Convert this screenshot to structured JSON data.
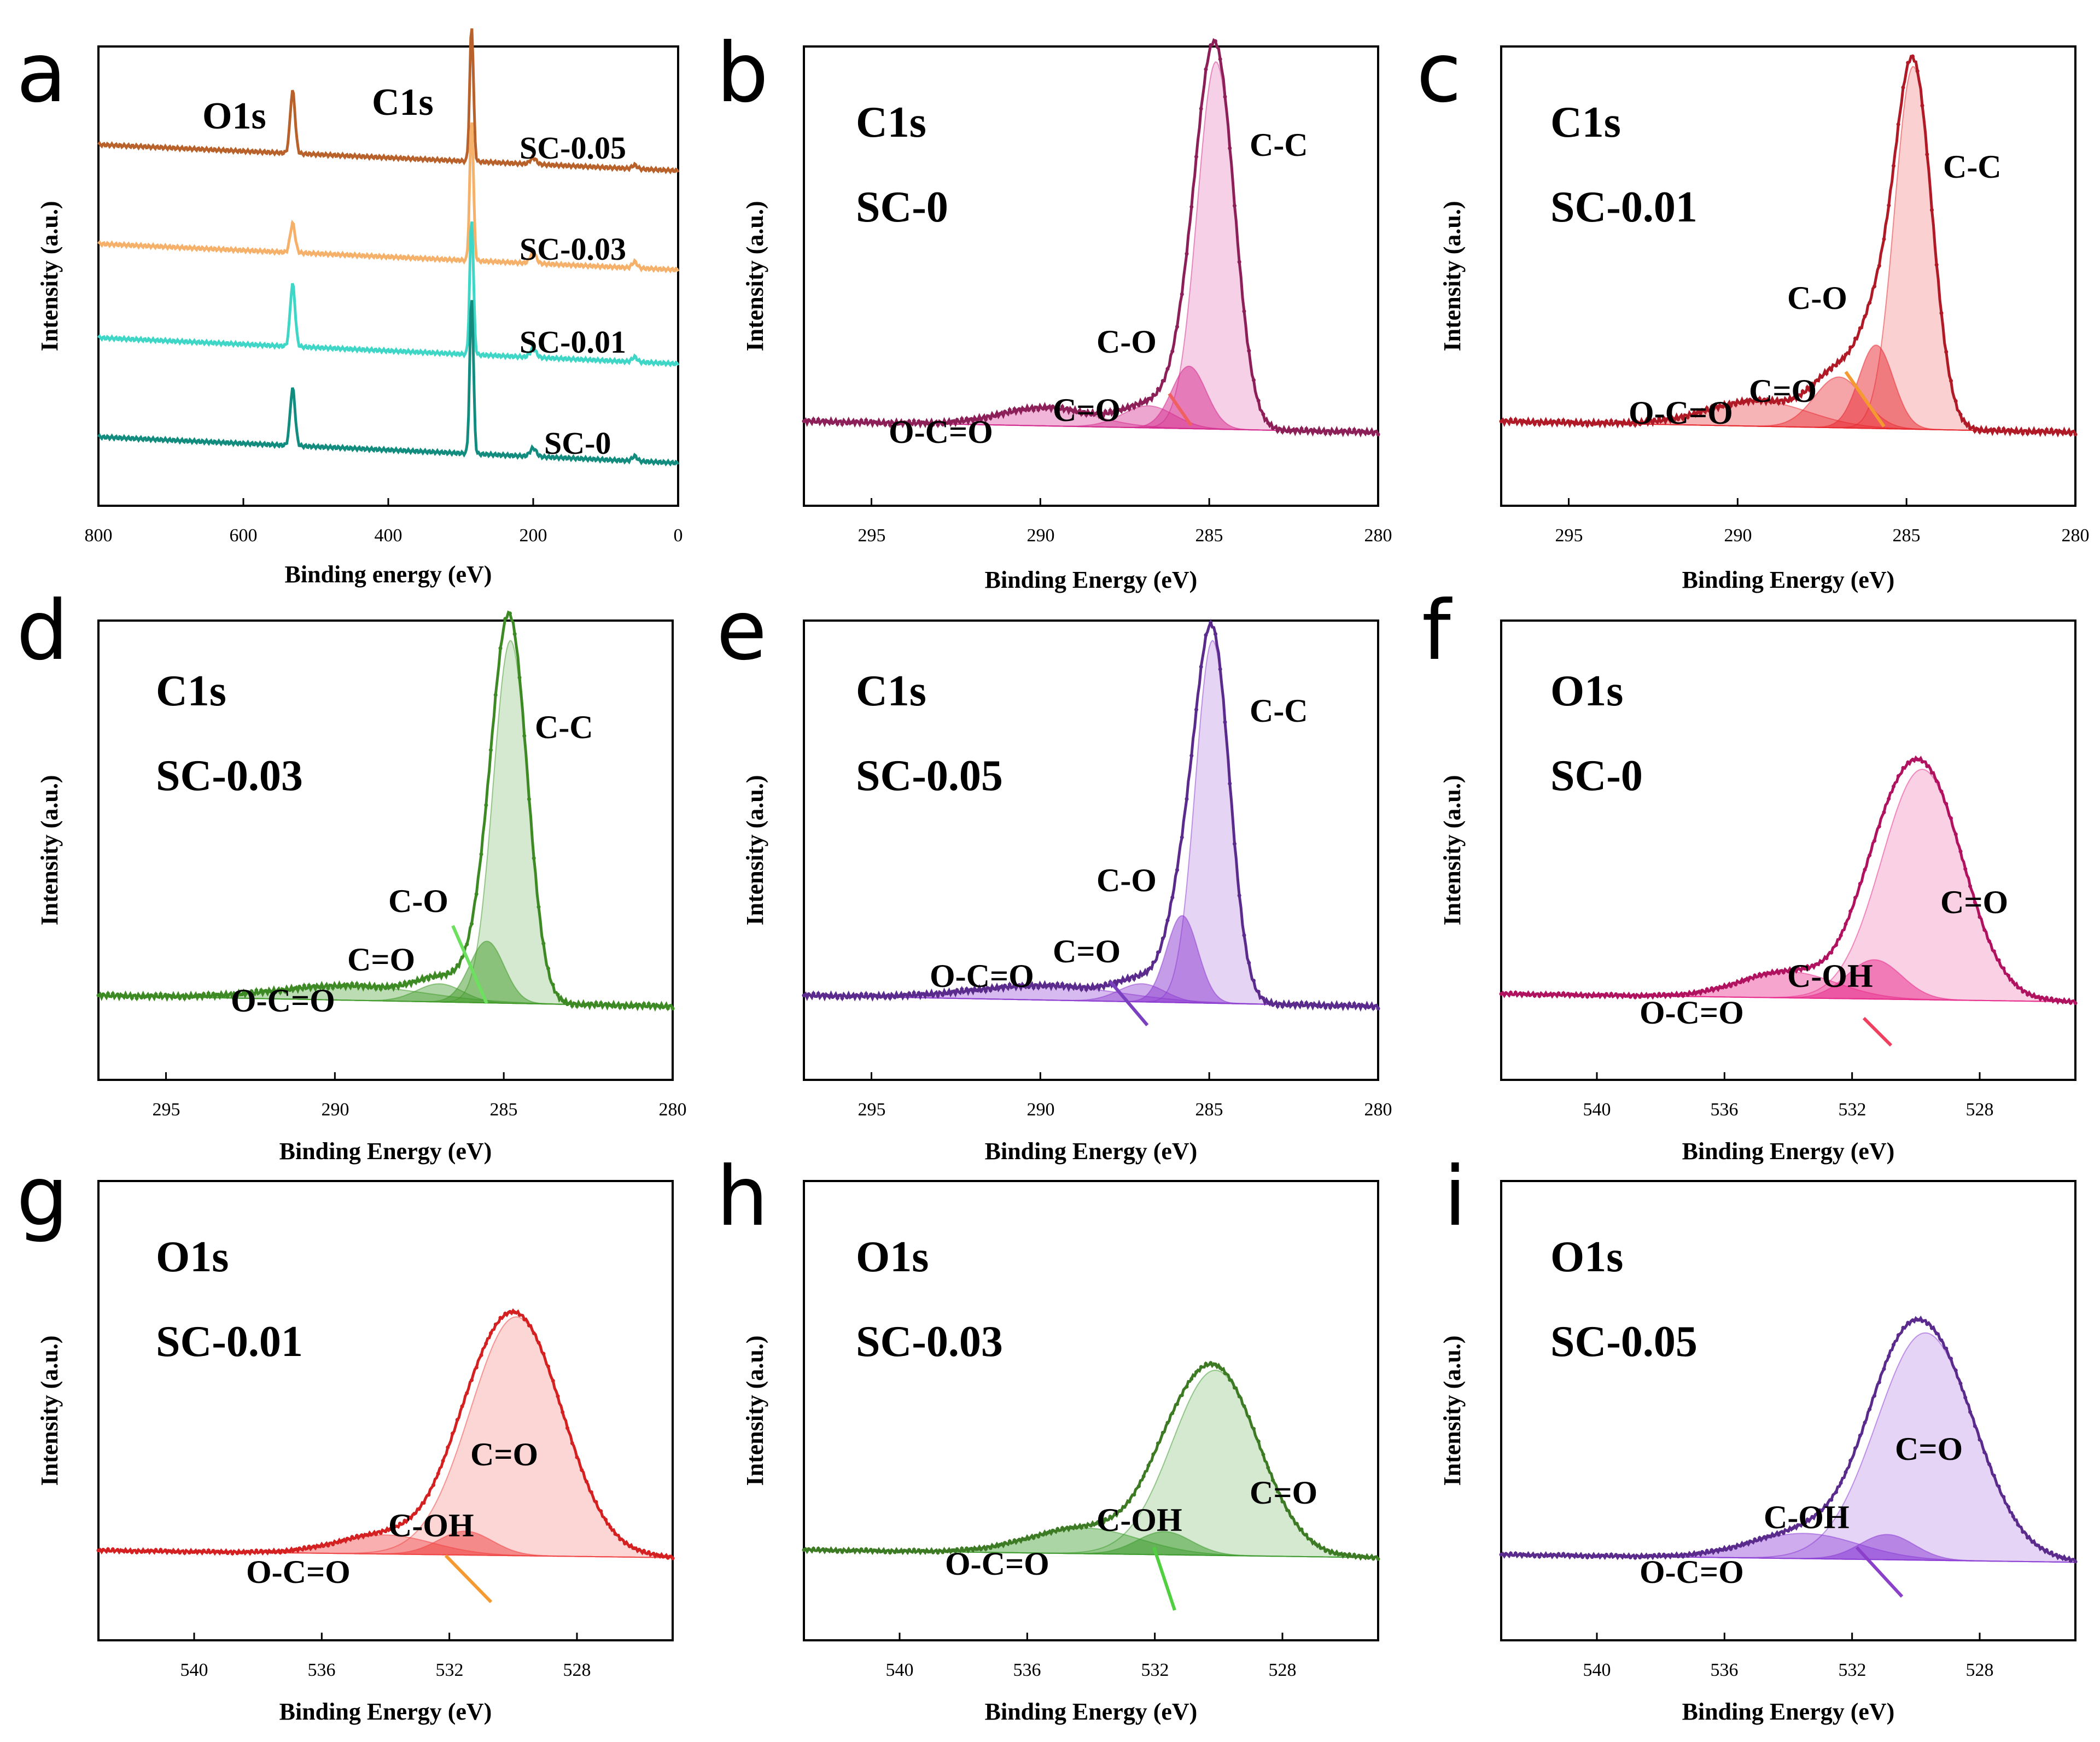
{
  "chart_data": [
    {
      "id": "a",
      "type": "line",
      "panel_label": "a",
      "xlabel": "Binding energy (eV)",
      "ylabel": "Intensity (a.u.)",
      "xlim": [
        800,
        0
      ],
      "x_ticks": [
        "800",
        "600",
        "400",
        "200",
        "0"
      ],
      "x_tick_values": [
        800,
        600,
        400,
        200,
        0
      ],
      "peak_labels": [
        {
          "text": "O1s",
          "x": 532
        },
        {
          "text": "C1s",
          "x": 285
        }
      ],
      "series": [
        {
          "name": "SC-0.05",
          "color": "#b8612a",
          "baseline": 3.0,
          "o1s": 0.6,
          "c1s": 1.3,
          "extra": 0.06
        },
        {
          "name": "SC-0.03",
          "color": "#f5b06a",
          "baseline": 2.05,
          "o1s": 0.28,
          "c1s": 1.35,
          "extra": 0.1
        },
        {
          "name": "SC-0.01",
          "color": "#3ed6c6",
          "baseline": 1.15,
          "o1s": 0.6,
          "c1s": 1.3,
          "extra": 0.08
        },
        {
          "name": "SC-0",
          "color": "#138c80",
          "baseline": 0.2,
          "o1s": 0.55,
          "c1s": 1.5,
          "extra": 0.08
        }
      ]
    },
    {
      "id": "b",
      "type": "area",
      "panel_label": "b",
      "core": "C1s",
      "sample": "SC-0",
      "xlabel": "Binding Energy (eV)",
      "ylabel": "Intensity (a.u.)",
      "xlim": [
        297,
        280
      ],
      "x_ticks": [
        "295",
        "290",
        "285",
        "280"
      ],
      "x_tick_values": [
        295,
        290,
        285,
        280
      ],
      "color": "#8c1f58",
      "comp_color": "#d42a8e",
      "peaks": [
        {
          "name": "C-C",
          "center": 284.8,
          "height": 1.0,
          "fwhm": 1.3
        },
        {
          "name": "C-O",
          "center": 285.6,
          "height": 0.17,
          "fwhm": 1.2
        },
        {
          "name": "C=O",
          "center": 286.8,
          "height": 0.06,
          "fwhm": 1.8
        },
        {
          "name": "O-C=O",
          "center": 289.8,
          "height": 0.05,
          "fwhm": 3.2
        }
      ],
      "labels": [
        "O-C=O",
        "C=O",
        "C-O",
        "C-C"
      ]
    },
    {
      "id": "c",
      "type": "area",
      "panel_label": "c",
      "core": "C1s",
      "sample": "SC-0.01",
      "xlabel": "Binding Energy (eV)",
      "ylabel": "Intensity (a.u.)",
      "xlim": [
        297,
        280
      ],
      "x_ticks": [
        "295",
        "290",
        "285",
        "280"
      ],
      "x_tick_values": [
        295,
        290,
        285,
        280
      ],
      "color": "#b01a26",
      "comp_color": "#e8282f",
      "peaks": [
        {
          "name": "C-C",
          "center": 284.8,
          "height": 1.0,
          "fwhm": 1.3
        },
        {
          "name": "C-O",
          "center": 285.9,
          "height": 0.23,
          "fwhm": 1.2
        },
        {
          "name": "C=O",
          "center": 287.0,
          "height": 0.14,
          "fwhm": 1.7
        },
        {
          "name": "O-C=O",
          "center": 289.4,
          "height": 0.07,
          "fwhm": 3.5
        }
      ],
      "labels": [
        "O-C=O",
        "C=O",
        "C-O",
        "C-C"
      ]
    },
    {
      "id": "d",
      "type": "area",
      "panel_label": "d",
      "core": "C1s",
      "sample": "SC-0.03",
      "xlabel": "Binding Energy (eV)",
      "ylabel": "Intensity (a.u.)",
      "xlim": [
        297,
        280
      ],
      "x_ticks": [
        "295",
        "290",
        "285",
        "280"
      ],
      "x_tick_values": [
        295,
        290,
        285,
        280
      ],
      "color": "#3d8a24",
      "comp_color": "#3f9a28",
      "peaks": [
        {
          "name": "C-C",
          "center": 284.8,
          "height": 1.0,
          "fwhm": 1.2
        },
        {
          "name": "C-O",
          "center": 285.5,
          "height": 0.17,
          "fwhm": 1.2
        },
        {
          "name": "C=O",
          "center": 286.9,
          "height": 0.05,
          "fwhm": 1.6
        },
        {
          "name": "O-C=O",
          "center": 289.5,
          "height": 0.04,
          "fwhm": 5.0
        }
      ],
      "labels": [
        "O-C=O",
        "C=O",
        "C-O",
        "C-C"
      ]
    },
    {
      "id": "e",
      "type": "area",
      "panel_label": "e",
      "core": "C1s",
      "sample": "SC-0.05",
      "xlabel": "Binding Energy (eV)",
      "ylabel": "Intensity (a.u.)",
      "xlim": [
        297,
        280
      ],
      "x_ticks": [
        "295",
        "290",
        "285",
        "280"
      ],
      "x_tick_values": [
        295,
        290,
        285,
        280
      ],
      "color": "#5a2a8c",
      "comp_color": "#8c3ad0",
      "peaks": [
        {
          "name": "C-C",
          "center": 284.9,
          "height": 1.0,
          "fwhm": 1.2
        },
        {
          "name": "C-O",
          "center": 285.8,
          "height": 0.24,
          "fwhm": 1.1
        },
        {
          "name": "C=O",
          "center": 287.0,
          "height": 0.05,
          "fwhm": 1.6
        },
        {
          "name": "O-C=O",
          "center": 289.8,
          "height": 0.04,
          "fwhm": 5.0
        }
      ],
      "labels": [
        "O-C=O",
        "C=O",
        "C-O",
        "C-C"
      ]
    },
    {
      "id": "f",
      "type": "area",
      "panel_label": "f",
      "core": "O1s",
      "sample": "SC-0",
      "xlabel": "Binding Energy (eV)",
      "ylabel": "Intensity (a.u.)",
      "xlim": [
        543,
        525
      ],
      "x_ticks": [
        "540",
        "536",
        "532",
        "528"
      ],
      "x_tick_values": [
        540,
        536,
        532,
        528
      ],
      "color": "#b01260",
      "comp_color": "#e8288a",
      "peaks": [
        {
          "name": "C=O",
          "center": 529.8,
          "height": 0.88,
          "fwhm": 3.0
        },
        {
          "name": "C-OH",
          "center": 531.3,
          "height": 0.15,
          "fwhm": 2.0
        },
        {
          "name": "O-C=O",
          "center": 534.0,
          "height": 0.1,
          "fwhm": 3.5
        }
      ],
      "labels": [
        "O-C=O",
        "C-OH",
        "C=O"
      ]
    },
    {
      "id": "g",
      "type": "area",
      "panel_label": "g",
      "core": "O1s",
      "sample": "SC-0.01",
      "xlabel": "Binding Energy (eV)",
      "ylabel": "Intensity (a.u.)",
      "xlim": [
        543,
        525
      ],
      "x_ticks": [
        "540",
        "536",
        "532",
        "528"
      ],
      "x_tick_values": [
        540,
        536,
        532,
        528
      ],
      "color": "#d42020",
      "comp_color": "#f04040",
      "peaks": [
        {
          "name": "C=O",
          "center": 529.9,
          "height": 1.0,
          "fwhm": 3.4
        },
        {
          "name": "C-OH",
          "center": 531.5,
          "height": 0.1,
          "fwhm": 2.0
        },
        {
          "name": "O-C=O",
          "center": 534.0,
          "height": 0.08,
          "fwhm": 3.5
        }
      ],
      "labels": [
        "O-C=O",
        "C-OH",
        "C=O"
      ]
    },
    {
      "id": "h",
      "type": "area",
      "panel_label": "h",
      "core": "O1s",
      "sample": "SC-0.03",
      "xlabel": "Binding Energy (eV)",
      "ylabel": "Intensity (a.u.)",
      "xlim": [
        543,
        525
      ],
      "x_ticks": [
        "540",
        "536",
        "532",
        "528"
      ],
      "x_tick_values": [
        540,
        536,
        532,
        528
      ],
      "color": "#3d7a24",
      "comp_color": "#3a9a2a",
      "peaks": [
        {
          "name": "C=O",
          "center": 530.1,
          "height": 0.72,
          "fwhm": 3.2
        },
        {
          "name": "C-OH",
          "center": 531.7,
          "height": 0.09,
          "fwhm": 2.0
        },
        {
          "name": "O-C=O",
          "center": 534.2,
          "height": 0.1,
          "fwhm": 4.0
        }
      ],
      "labels": [
        "O-C=O",
        "C-OH",
        "C=O"
      ]
    },
    {
      "id": "i",
      "type": "area",
      "panel_label": "i",
      "core": "O1s",
      "sample": "SC-0.05",
      "xlabel": "Binding Energy (eV)",
      "ylabel": "Intensity (a.u.)",
      "xlim": [
        543,
        525
      ],
      "x_ticks": [
        "540",
        "536",
        "532",
        "528"
      ],
      "x_tick_values": [
        540,
        536,
        532,
        528
      ],
      "color": "#5a2a8c",
      "comp_color": "#8a3ad4",
      "peaks": [
        {
          "name": "C=O",
          "center": 529.7,
          "height": 0.9,
          "fwhm": 3.6
        },
        {
          "name": "C-OH",
          "center": 530.9,
          "height": 0.1,
          "fwhm": 2.0
        },
        {
          "name": "O-C=O",
          "center": 533.5,
          "height": 0.1,
          "fwhm": 4.0
        }
      ],
      "labels": [
        "O-C=O",
        "C-OH",
        "C=O"
      ]
    }
  ]
}
